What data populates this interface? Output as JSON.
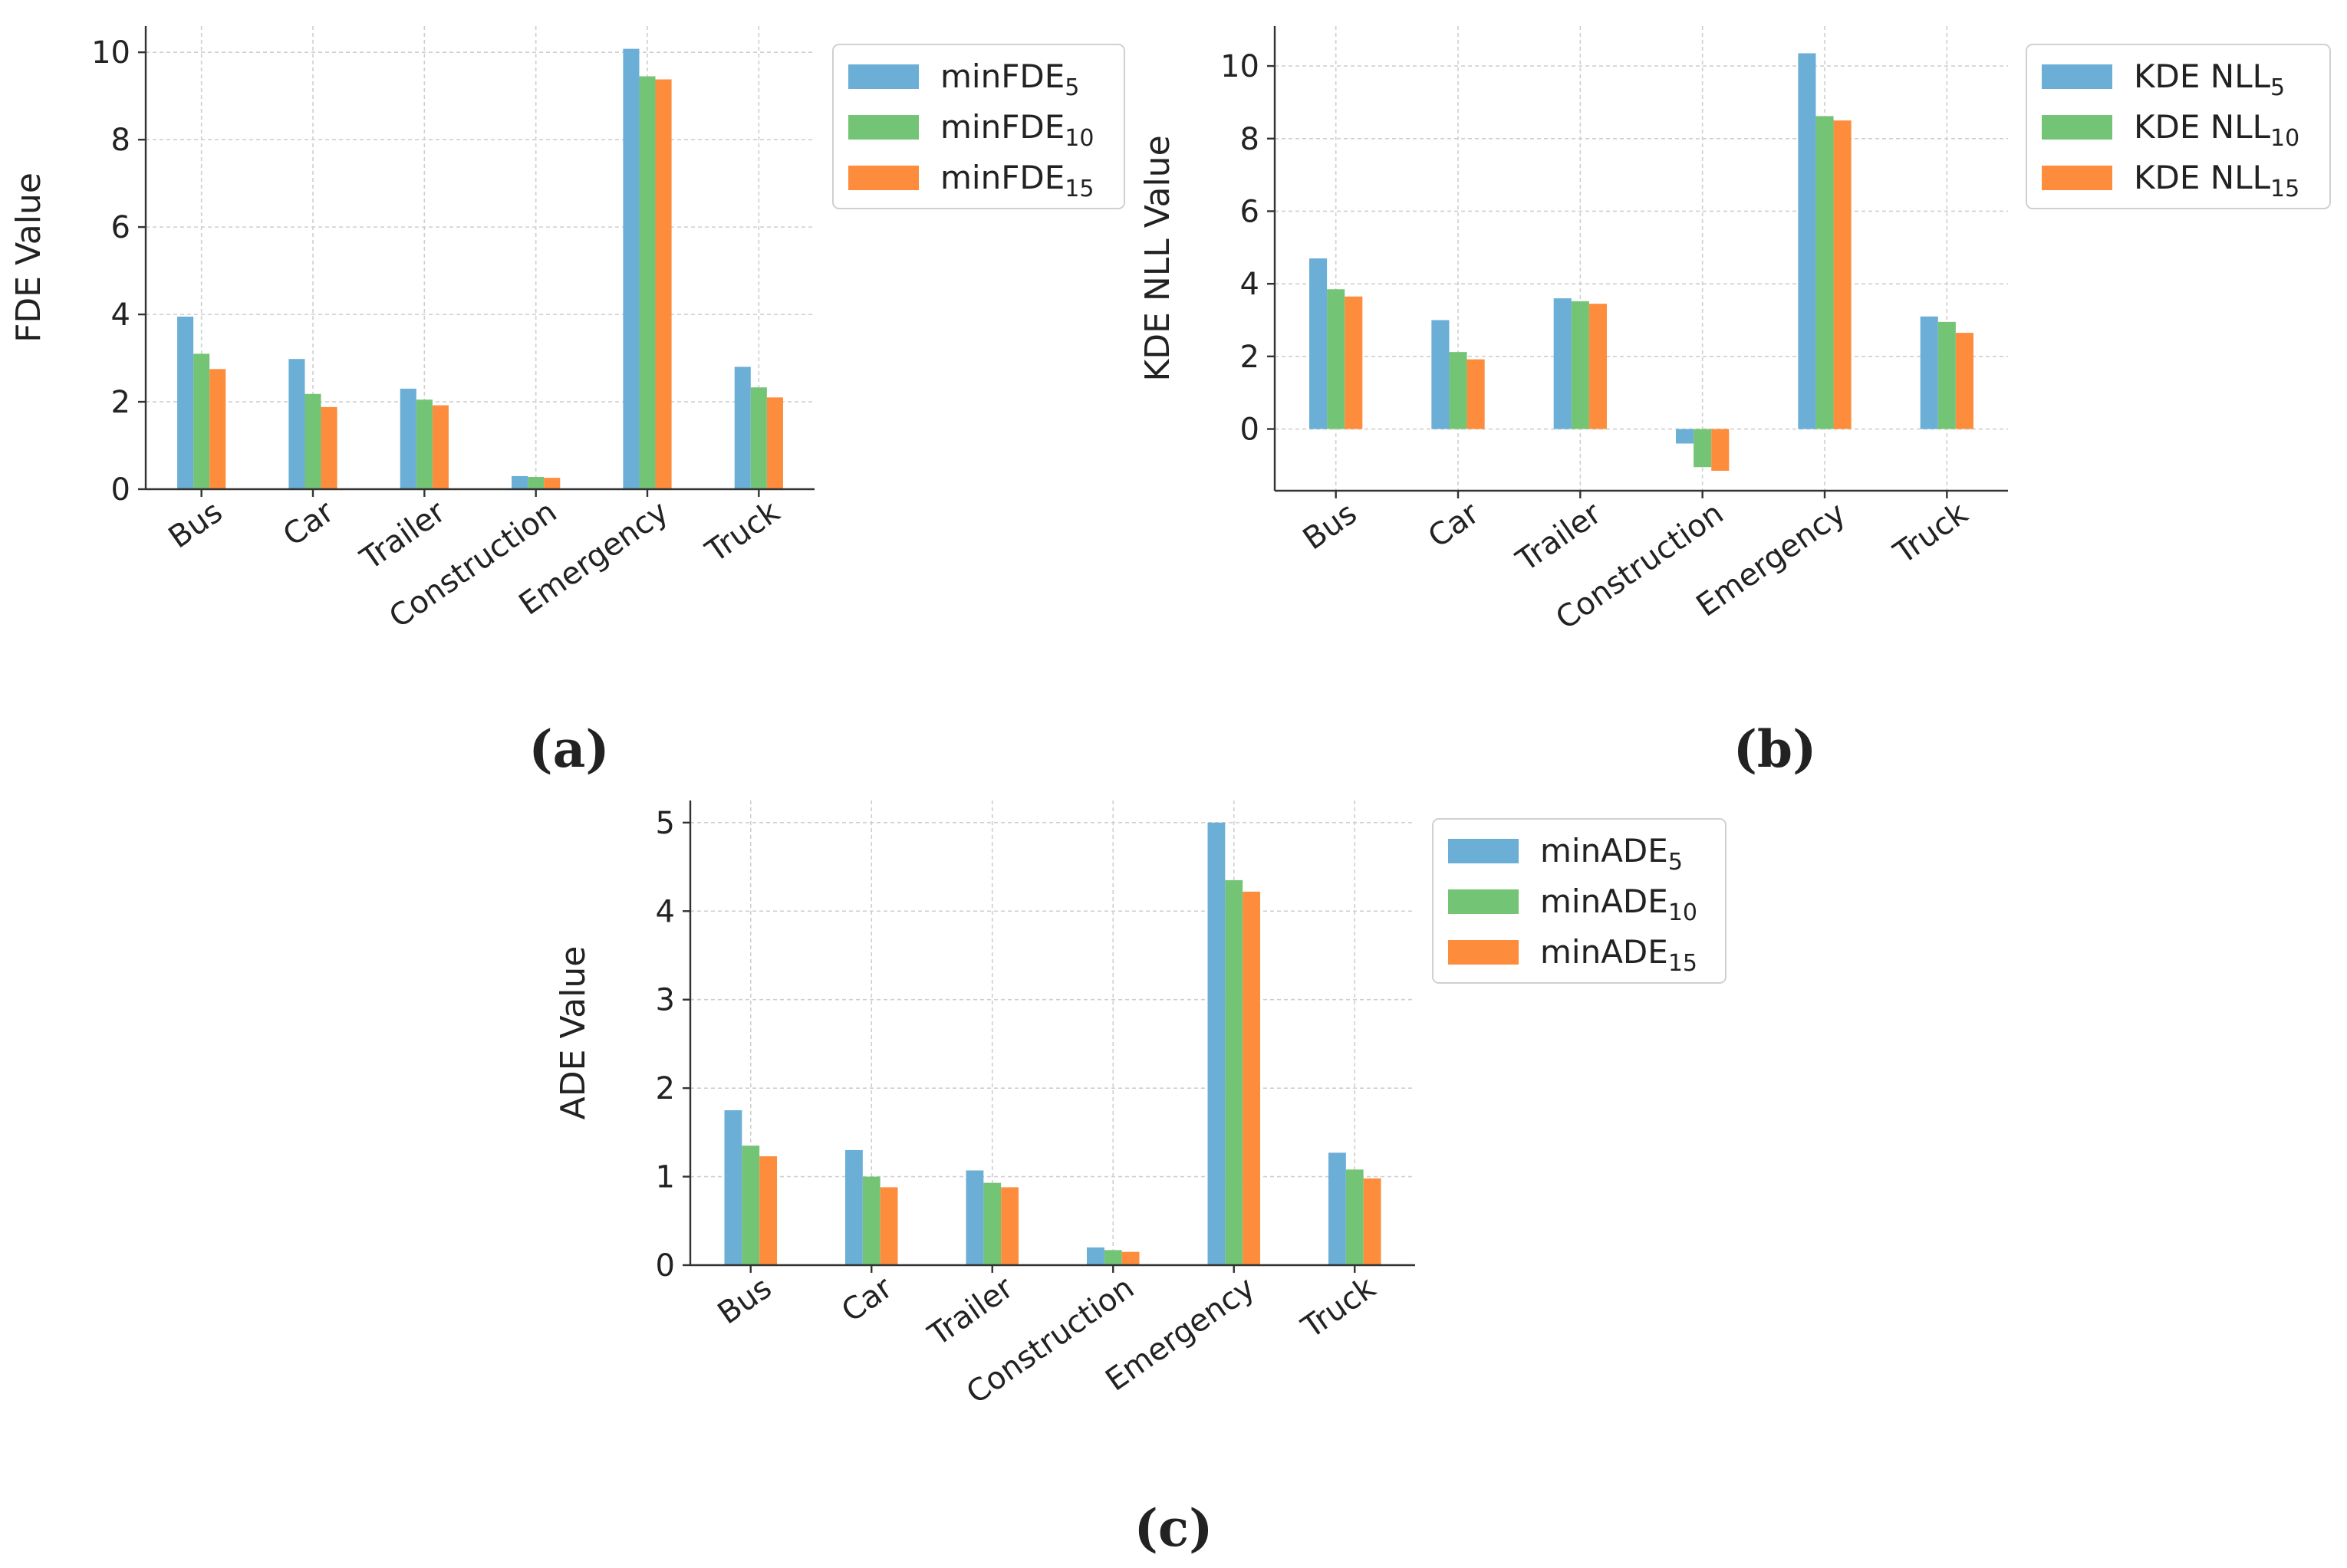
{
  "colors": [
    "#6baed6",
    "#74c476",
    "#fd8d3c"
  ],
  "chart_data": [
    {
      "type": "bar",
      "panel": "(a)",
      "categories": [
        "Bus",
        "Car",
        "Trailer",
        "Construction",
        "Emergency",
        "Truck"
      ],
      "ylabel": "FDE Value",
      "xlabel": "",
      "ylim": [
        0,
        10.6
      ],
      "yticks": [
        0,
        2,
        4,
        6,
        8,
        10
      ],
      "grid": true,
      "legend_position": "outside-top-right",
      "series": [
        {
          "name": "minFDE",
          "sub": "5",
          "values": [
            3.95,
            2.98,
            2.3,
            0.3,
            10.08,
            2.8
          ]
        },
        {
          "name": "minFDE",
          "sub": "10",
          "values": [
            3.1,
            2.18,
            2.05,
            0.28,
            9.45,
            2.33
          ]
        },
        {
          "name": "minFDE",
          "sub": "15",
          "values": [
            2.75,
            1.88,
            1.92,
            0.26,
            9.38,
            2.1
          ]
        }
      ]
    },
    {
      "type": "bar",
      "panel": "(b)",
      "categories": [
        "Bus",
        "Car",
        "Trailer",
        "Construction",
        "Emergency",
        "Truck"
      ],
      "ylabel": "KDE NLL Value",
      "xlabel": "",
      "ylim": [
        -1.7,
        11.1
      ],
      "yticks": [
        0,
        2,
        4,
        6,
        8,
        10
      ],
      "grid": true,
      "legend_position": "outside-top-right",
      "series": [
        {
          "name": "KDE NLL",
          "sub": "5",
          "values": [
            4.7,
            3.0,
            3.6,
            -0.4,
            10.35,
            3.1
          ]
        },
        {
          "name": "KDE NLL",
          "sub": "10",
          "values": [
            3.85,
            2.12,
            3.52,
            -1.05,
            8.62,
            2.95
          ]
        },
        {
          "name": "KDE NLL",
          "sub": "15",
          "values": [
            3.65,
            1.92,
            3.45,
            -1.15,
            8.5,
            2.65
          ]
        }
      ]
    },
    {
      "type": "bar",
      "panel": "(c)",
      "categories": [
        "Bus",
        "Car",
        "Trailer",
        "Construction",
        "Emergency",
        "Truck"
      ],
      "ylabel": "ADE Value",
      "xlabel": "",
      "ylim": [
        0,
        5.25
      ],
      "yticks": [
        0,
        1,
        2,
        3,
        4,
        5
      ],
      "grid": true,
      "legend_position": "outside-top-right",
      "series": [
        {
          "name": "minADE",
          "sub": "5",
          "values": [
            1.75,
            1.3,
            1.07,
            0.2,
            5.0,
            1.27
          ]
        },
        {
          "name": "minADE",
          "sub": "10",
          "values": [
            1.35,
            1.0,
            0.93,
            0.17,
            4.35,
            1.08
          ]
        },
        {
          "name": "minADE",
          "sub": "15",
          "values": [
            1.23,
            0.88,
            0.88,
            0.15,
            4.22,
            0.98
          ]
        }
      ]
    }
  ]
}
